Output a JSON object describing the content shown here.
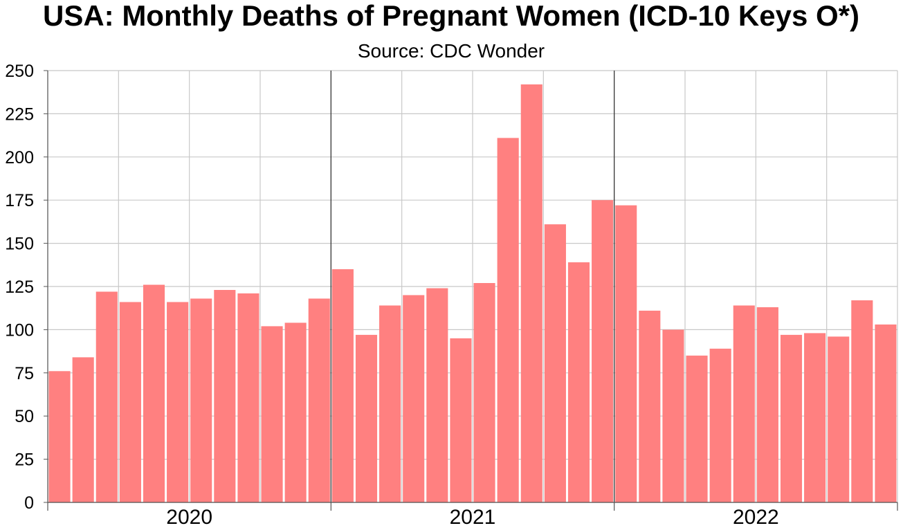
{
  "chart_data": {
    "type": "bar",
    "title": "USA: Monthly Deaths of Pregnant Women (ICD-10 Keys O*)",
    "subtitle": "Source: CDC Wonder",
    "xlabel": "",
    "ylabel": "",
    "ylim": [
      0,
      250
    ],
    "yticks": [
      0,
      25,
      50,
      75,
      100,
      125,
      150,
      175,
      200,
      225,
      250
    ],
    "grid": true,
    "bar_color": "#ff8080",
    "year_labels": [
      "2020",
      "2021",
      "2022"
    ],
    "months_per_year": 12,
    "values": [
      76,
      84,
      122,
      116,
      126,
      116,
      118,
      123,
      121,
      102,
      104,
      118,
      135,
      97,
      114,
      120,
      124,
      95,
      127,
      211,
      242,
      161,
      139,
      175,
      172,
      111,
      100,
      85,
      89,
      114,
      113,
      97,
      98,
      96,
      117,
      103
    ]
  }
}
